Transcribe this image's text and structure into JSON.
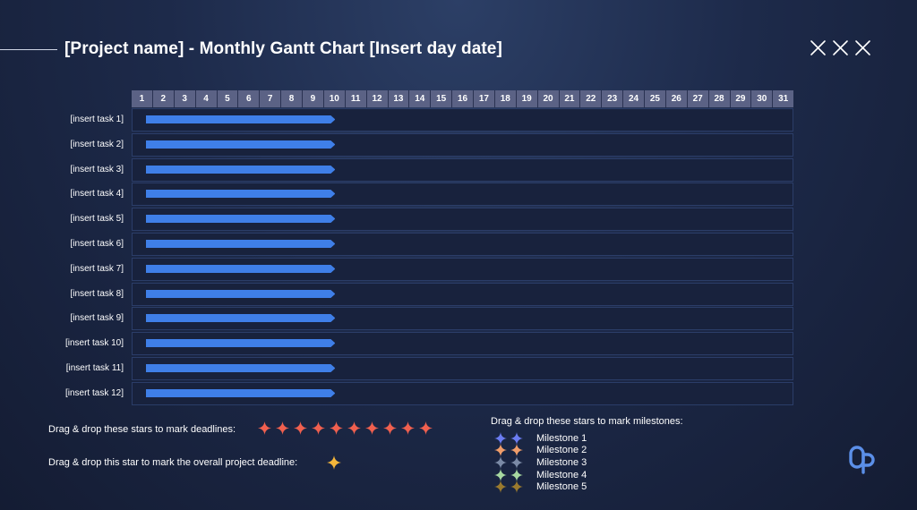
{
  "header": {
    "title": "[Project name] - Monthly Gantt Chart [Insert day date]"
  },
  "top_icons": [
    "close-icon",
    "close-icon",
    "close-icon"
  ],
  "calendar": {
    "days": [
      "1",
      "2",
      "3",
      "4",
      "5",
      "6",
      "7",
      "8",
      "9",
      "10",
      "11",
      "12",
      "13",
      "14",
      "15",
      "16",
      "17",
      "18",
      "19",
      "20",
      "21",
      "22",
      "23",
      "24",
      "25",
      "26",
      "27",
      "28",
      "29",
      "30",
      "31"
    ]
  },
  "tasks": [
    {
      "label": "[insert task 1]",
      "start": 1,
      "end": 10
    },
    {
      "label": "[insert task 2]",
      "start": 1,
      "end": 10
    },
    {
      "label": "[insert task 3]",
      "start": 1,
      "end": 10
    },
    {
      "label": "[insert task 4]",
      "start": 1,
      "end": 10
    },
    {
      "label": "[insert task 5]",
      "start": 1,
      "end": 10
    },
    {
      "label": "[insert task 6]",
      "start": 1,
      "end": 10
    },
    {
      "label": "[insert task 7]",
      "start": 1,
      "end": 10
    },
    {
      "label": "[insert task 8]",
      "start": 1,
      "end": 10
    },
    {
      "label": "[insert task 9]",
      "start": 1,
      "end": 10
    },
    {
      "label": "[insert task 10]",
      "start": 1,
      "end": 10
    },
    {
      "label": "[insert task 11]",
      "start": 1,
      "end": 10
    },
    {
      "label": "[insert task 12]",
      "start": 1,
      "end": 10
    }
  ],
  "colors": {
    "bar": "#3f7fe8",
    "deadline_star": "#f0604f",
    "overall_star": "#f5b63a",
    "milestones": [
      "#6b7cf2",
      "#f09d6a",
      "#7b8aa6",
      "#a7d8a0",
      "#9a7a2e"
    ]
  },
  "legend": {
    "deadline_text": "Drag & drop these stars to mark deadlines:",
    "deadline_star_count": 10,
    "overall_text": "Drag & drop this star to mark the overall project deadline:",
    "milestone_text": "Drag & drop these stars to mark milestones:",
    "milestones": [
      "Milestone 1",
      "Milestone 2",
      "Milestone 3",
      "Milestone 4",
      "Milestone 5"
    ]
  },
  "logo": "brand-logo-icon"
}
